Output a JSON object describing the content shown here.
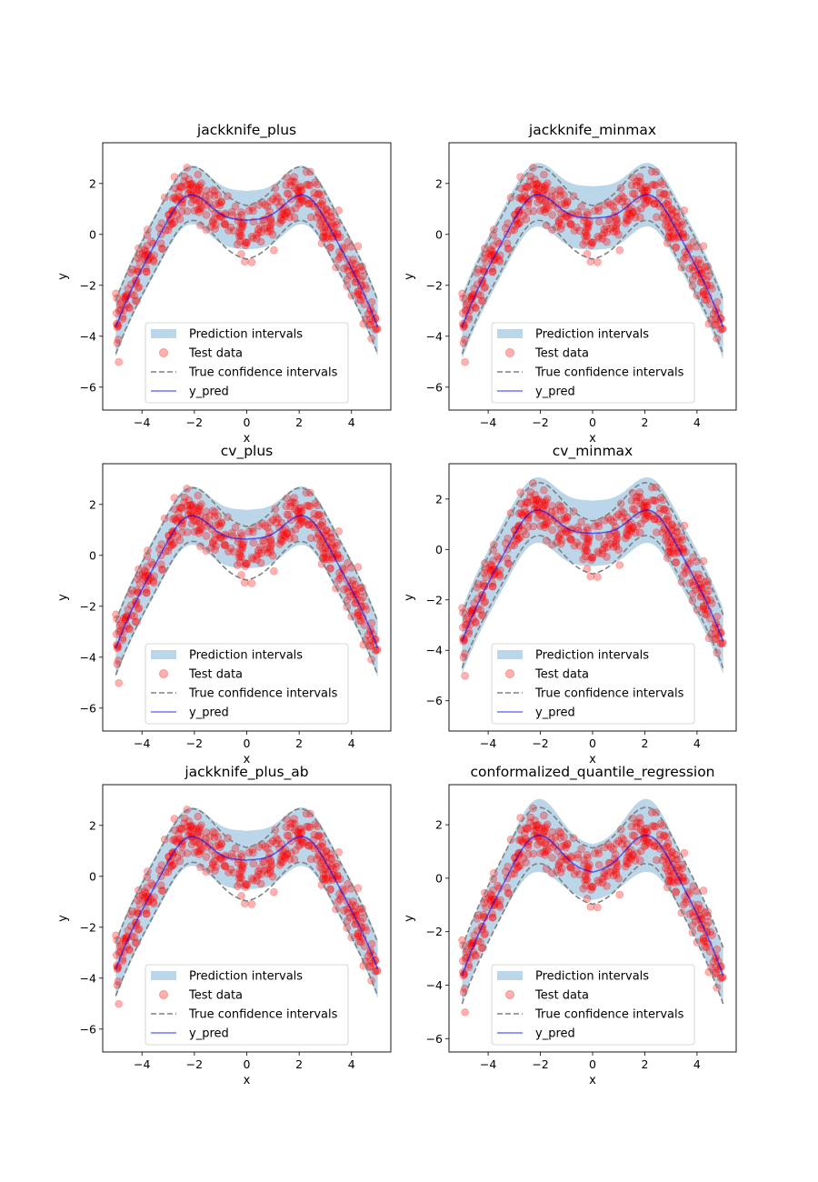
{
  "figure": {
    "legend_labels": [
      "Prediction intervals",
      "Test data",
      "True confidence intervals",
      "y_pred"
    ],
    "colors": {
      "band": "#1f77b4",
      "points": "#ff0000",
      "true_ci": "#808080",
      "pred": "#0000ff",
      "axis": "#000000"
    }
  },
  "chart_data": [
    {
      "type": "scatter",
      "title": "jackknife_plus",
      "xlabel": "x",
      "ylabel": "y",
      "xlim": [
        -5.5,
        5.5
      ],
      "ylim": [
        -6.9,
        3.6
      ],
      "xticks": [
        -4,
        -2,
        0,
        2,
        4
      ],
      "yticks": [
        -6,
        -4,
        -2,
        0,
        2
      ],
      "tick_labels_x": [
        "−4",
        "−2",
        "0",
        "2",
        "4"
      ],
      "tick_labels_y": [
        "−6",
        "−4",
        "−2",
        "0",
        "2"
      ],
      "legend": "lower-center",
      "pred_a": 0.52,
      "half_width": 1.15,
      "series": [
        {
          "name": "Prediction intervals",
          "kind": "band"
        },
        {
          "name": "Test data",
          "kind": "points"
        },
        {
          "name": "True confidence intervals",
          "kind": "dashed"
        },
        {
          "name": "y_pred",
          "kind": "line"
        }
      ]
    },
    {
      "type": "scatter",
      "title": "jackknife_minmax",
      "xlabel": "x",
      "ylabel": "y",
      "xlim": [
        -5.5,
        5.5
      ],
      "ylim": [
        -6.9,
        3.6
      ],
      "xticks": [
        -4,
        -2,
        0,
        2,
        4
      ],
      "yticks": [
        -6,
        -4,
        -2,
        0,
        2
      ],
      "tick_labels_x": [
        "−4",
        "−2",
        "0",
        "2",
        "4"
      ],
      "tick_labels_y": [
        "−6",
        "−4",
        "−2",
        "0",
        "2"
      ],
      "legend": "lower-center",
      "pred_a": 0.6,
      "half_width": 1.25,
      "series": [
        {
          "name": "Prediction intervals",
          "kind": "band"
        },
        {
          "name": "Test data",
          "kind": "points"
        },
        {
          "name": "True confidence intervals",
          "kind": "dashed"
        },
        {
          "name": "y_pred",
          "kind": "line"
        }
      ]
    },
    {
      "type": "scatter",
      "title": "cv_plus",
      "xlabel": "x",
      "ylabel": "y",
      "xlim": [
        -5.5,
        5.5
      ],
      "ylim": [
        -6.9,
        3.6
      ],
      "xticks": [
        -4,
        -2,
        0,
        2,
        4
      ],
      "yticks": [
        -6,
        -4,
        -2,
        0,
        2
      ],
      "tick_labels_x": [
        "−4",
        "−2",
        "0",
        "2",
        "4"
      ],
      "tick_labels_y": [
        "−6",
        "−4",
        "−2",
        "0",
        "2"
      ],
      "legend": "lower-center",
      "pred_a": 0.6,
      "half_width": 1.15,
      "series": [
        {
          "name": "Prediction intervals",
          "kind": "band"
        },
        {
          "name": "Test data",
          "kind": "points"
        },
        {
          "name": "True confidence intervals",
          "kind": "dashed"
        },
        {
          "name": "y_pred",
          "kind": "line"
        }
      ]
    },
    {
      "type": "scatter",
      "title": "cv_minmax",
      "xlabel": "x",
      "ylabel": "y",
      "xlim": [
        -5.5,
        5.5
      ],
      "ylim": [
        -7.2,
        3.4
      ],
      "xticks": [
        -4,
        -2,
        0,
        2,
        4
      ],
      "yticks": [
        -6,
        -4,
        -2,
        0,
        2
      ],
      "tick_labels_x": [
        "−4",
        "−2",
        "0",
        "2",
        "4"
      ],
      "tick_labels_y": [
        "−6",
        "−4",
        "−2",
        "0",
        "2"
      ],
      "legend": "lower-center",
      "pred_a": 0.6,
      "half_width": 1.3,
      "series": [
        {
          "name": "Prediction intervals",
          "kind": "band"
        },
        {
          "name": "Test data",
          "kind": "points"
        },
        {
          "name": "True confidence intervals",
          "kind": "dashed"
        },
        {
          "name": "y_pred",
          "kind": "line"
        }
      ]
    },
    {
      "type": "scatter",
      "title": "jackknife_plus_ab",
      "xlabel": "x",
      "ylabel": "y",
      "xlim": [
        -5.5,
        5.5
      ],
      "ylim": [
        -6.9,
        3.6
      ],
      "xticks": [
        -4,
        -2,
        0,
        2,
        4
      ],
      "yticks": [
        -6,
        -4,
        -2,
        0,
        2
      ],
      "tick_labels_x": [
        "−4",
        "−2",
        "0",
        "2",
        "4"
      ],
      "tick_labels_y": [
        "−6",
        "−4",
        "−2",
        "0",
        "2"
      ],
      "legend": "lower-center",
      "pred_a": 0.6,
      "half_width": 1.15,
      "series": [
        {
          "name": "Prediction intervals",
          "kind": "band"
        },
        {
          "name": "Test data",
          "kind": "points"
        },
        {
          "name": "True confidence intervals",
          "kind": "dashed"
        },
        {
          "name": "y_pred",
          "kind": "line"
        }
      ]
    },
    {
      "type": "scatter",
      "title": "conformalized_quantile_regression",
      "xlabel": "x",
      "ylabel": "y",
      "xlim": [
        -5.5,
        5.5
      ],
      "ylim": [
        -6.5,
        3.5
      ],
      "xticks": [
        -4,
        -2,
        0,
        2,
        4
      ],
      "yticks": [
        -6,
        -4,
        -2,
        0,
        2
      ],
      "tick_labels_x": [
        "−4",
        "−2",
        "0",
        "2",
        "4"
      ],
      "tick_labels_y": [
        "−6",
        "−4",
        "−2",
        "0",
        "2"
      ],
      "legend": "lower-center",
      "pred_a": 0.15,
      "half_width": 1.3,
      "series": [
        {
          "name": "Prediction intervals",
          "kind": "band"
        },
        {
          "name": "Test data",
          "kind": "points"
        },
        {
          "name": "True confidence intervals",
          "kind": "dashed"
        },
        {
          "name": "y_pred",
          "kind": "line"
        }
      ]
    }
  ]
}
